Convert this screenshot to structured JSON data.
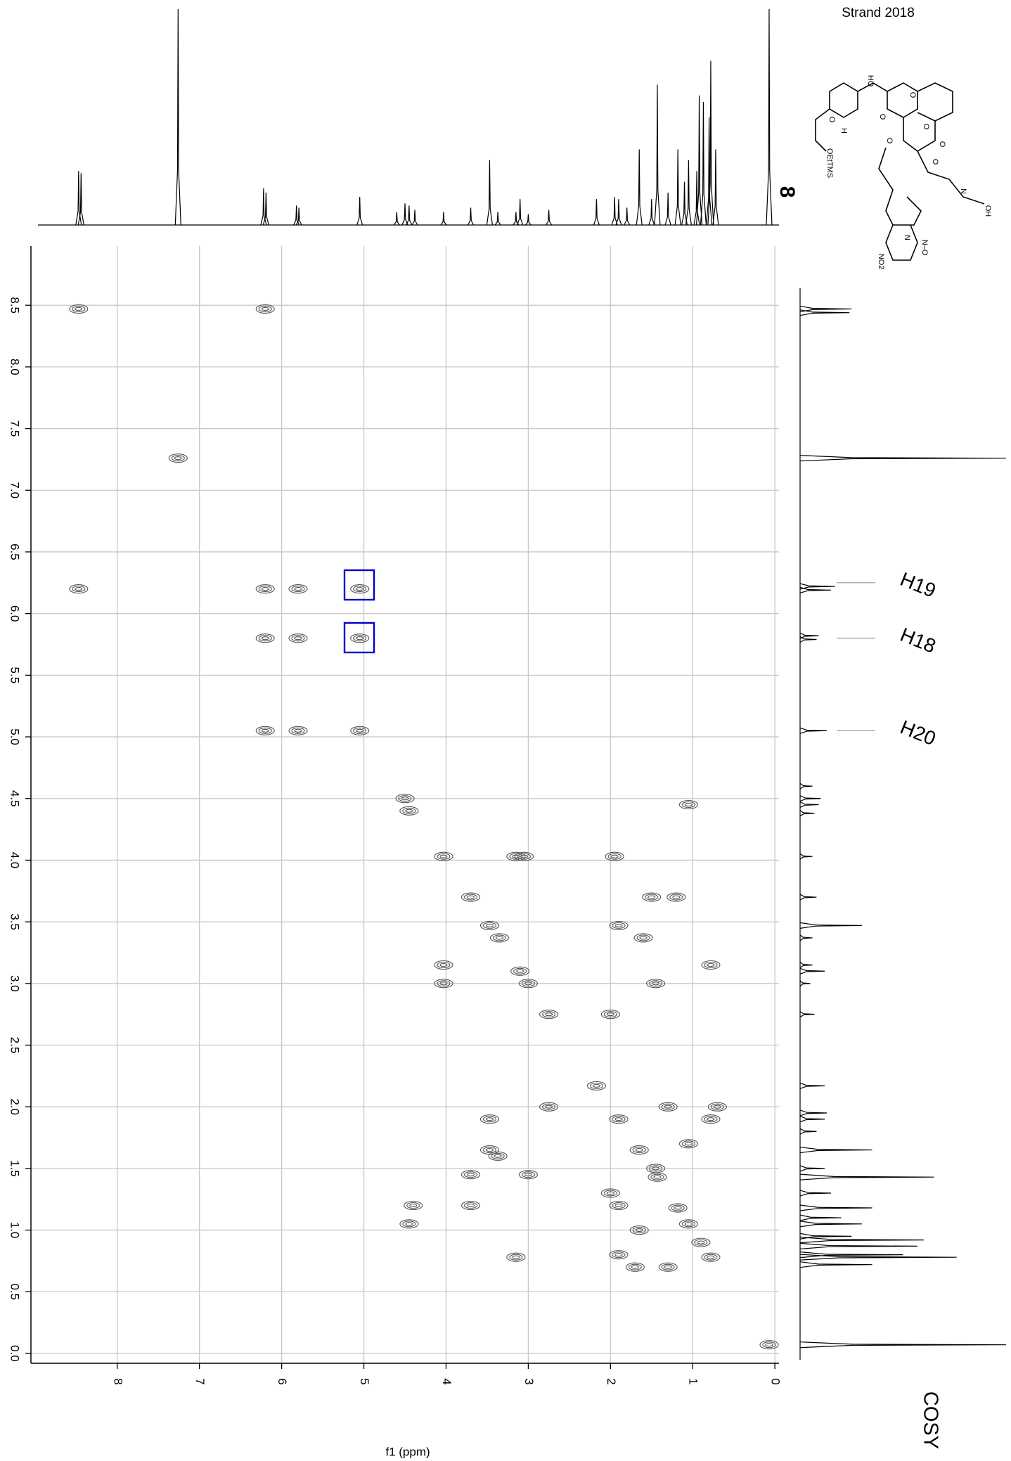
{
  "chart_data": {
    "type": "contour",
    "title": "Strand 2018",
    "compound": "8",
    "experiment": "COSY",
    "xlabel": "f1 (ppm)",
    "xlim": [
      9.05,
      -0.05
    ],
    "ylim": [
      -0.08,
      8.98
    ],
    "xticks": [
      8,
      7,
      6,
      5,
      4,
      3,
      2,
      1,
      0
    ],
    "yticks": [
      {
        "value": 0,
        "label": "0.0"
      },
      0.5,
      {
        "value": 1,
        "label": "1.0"
      },
      1.5,
      {
        "value": 2,
        "label": "2.0"
      },
      2.5,
      {
        "value": 3,
        "label": "3.0"
      },
      3.5,
      {
        "value": 4,
        "label": "4.0"
      },
      4.5,
      {
        "value": 5,
        "label": "5.0"
      },
      5.5,
      {
        "value": 6,
        "label": "6.0"
      },
      6.5,
      {
        "value": 7,
        "label": "7.0"
      },
      7.5,
      {
        "value": 8,
        "label": "8.0"
      },
      8.5
    ],
    "grid": true,
    "color": "#555555",
    "highlight_color": "#0000cc",
    "cross_peaks": {
      "x": [
        8.47,
        7.26,
        6.2,
        5.8,
        5.05,
        4.5,
        4.45,
        4.03,
        3.7,
        3.47,
        3.35,
        3.1,
        3.0,
        2.75,
        2.17,
        1.9,
        1.65,
        1.43,
        1.18,
        1.05,
        0.9,
        0.78,
        0.07,
        8.47,
        6.2,
        6.2,
        5.8,
        5.05,
        5.05,
        6.2,
        5.8,
        1.05,
        4.45,
        3.15,
        4.03,
        4.03,
        1.95,
        3.05,
        1.2,
        3.7,
        1.5,
        1.9,
        3.47,
        1.6,
        3.37,
        0.78,
        3.15,
        1.45,
        3.0,
        2.0,
        2.75,
        3.47,
        1.3,
        0.7,
        1.9,
        2.0,
        1.7,
        1.3,
        1.05,
        3.7,
        4.4,
        1.45,
        0.78,
        1.65,
        1.9
      ],
      "y": [
        8.47,
        7.26,
        6.2,
        5.8,
        5.05,
        4.5,
        4.4,
        4.03,
        3.7,
        3.47,
        3.37,
        3.1,
        3.0,
        2.75,
        2.17,
        1.9,
        1.65,
        1.43,
        1.18,
        1.05,
        0.9,
        0.78,
        0.07,
        6.2,
        8.47,
        5.8,
        6.2,
        6.2,
        5.8,
        5.05,
        5.05,
        4.45,
        1.05,
        4.03,
        3.15,
        3.0,
        4.03,
        4.03,
        3.7,
        1.2,
        3.7,
        3.47,
        1.9,
        3.37,
        1.6,
        3.15,
        0.78,
        3.0,
        1.45,
        2.75,
        2.0,
        1.65,
        2.0,
        2.0,
        0.8,
        1.3,
        0.7,
        0.7,
        1.7,
        1.45,
        1.2,
        1.5,
        1.9,
        1.0,
        1.2
      ]
    },
    "projection": {
      "ppm": [
        8.47,
        8.44,
        7.26,
        6.22,
        6.19,
        5.82,
        5.79,
        5.05,
        4.6,
        4.5,
        4.45,
        4.38,
        4.03,
        3.7,
        3.47,
        3.37,
        3.15,
        3.1,
        3.0,
        2.75,
        2.17,
        1.95,
        1.9,
        1.8,
        1.65,
        1.5,
        1.43,
        1.3,
        1.18,
        1.1,
        1.05,
        0.95,
        0.92,
        0.87,
        0.8,
        0.78,
        0.72,
        0.07
      ],
      "intensity": [
        0.25,
        0.24,
        1.0,
        0.17,
        0.15,
        0.09,
        0.08,
        0.13,
        0.06,
        0.1,
        0.09,
        0.07,
        0.06,
        0.08,
        0.3,
        0.06,
        0.06,
        0.12,
        0.05,
        0.07,
        0.12,
        0.13,
        0.12,
        0.08,
        0.35,
        0.12,
        0.65,
        0.15,
        0.35,
        0.2,
        0.3,
        0.25,
        0.6,
        0.57,
        0.5,
        0.76,
        0.35,
        1.0
      ]
    },
    "annotations": [
      {
        "text": "H19",
        "y": 6.25
      },
      {
        "text": "H18",
        "y": 5.8
      },
      {
        "text": "H20",
        "y": 5.05
      }
    ],
    "structure_labels": [
      "HO",
      "O",
      "H",
      "O",
      "O",
      "O",
      "O",
      "O",
      "OEtTMS",
      "O",
      "N",
      "N",
      "N–O",
      "NO2",
      "OH"
    ]
  }
}
